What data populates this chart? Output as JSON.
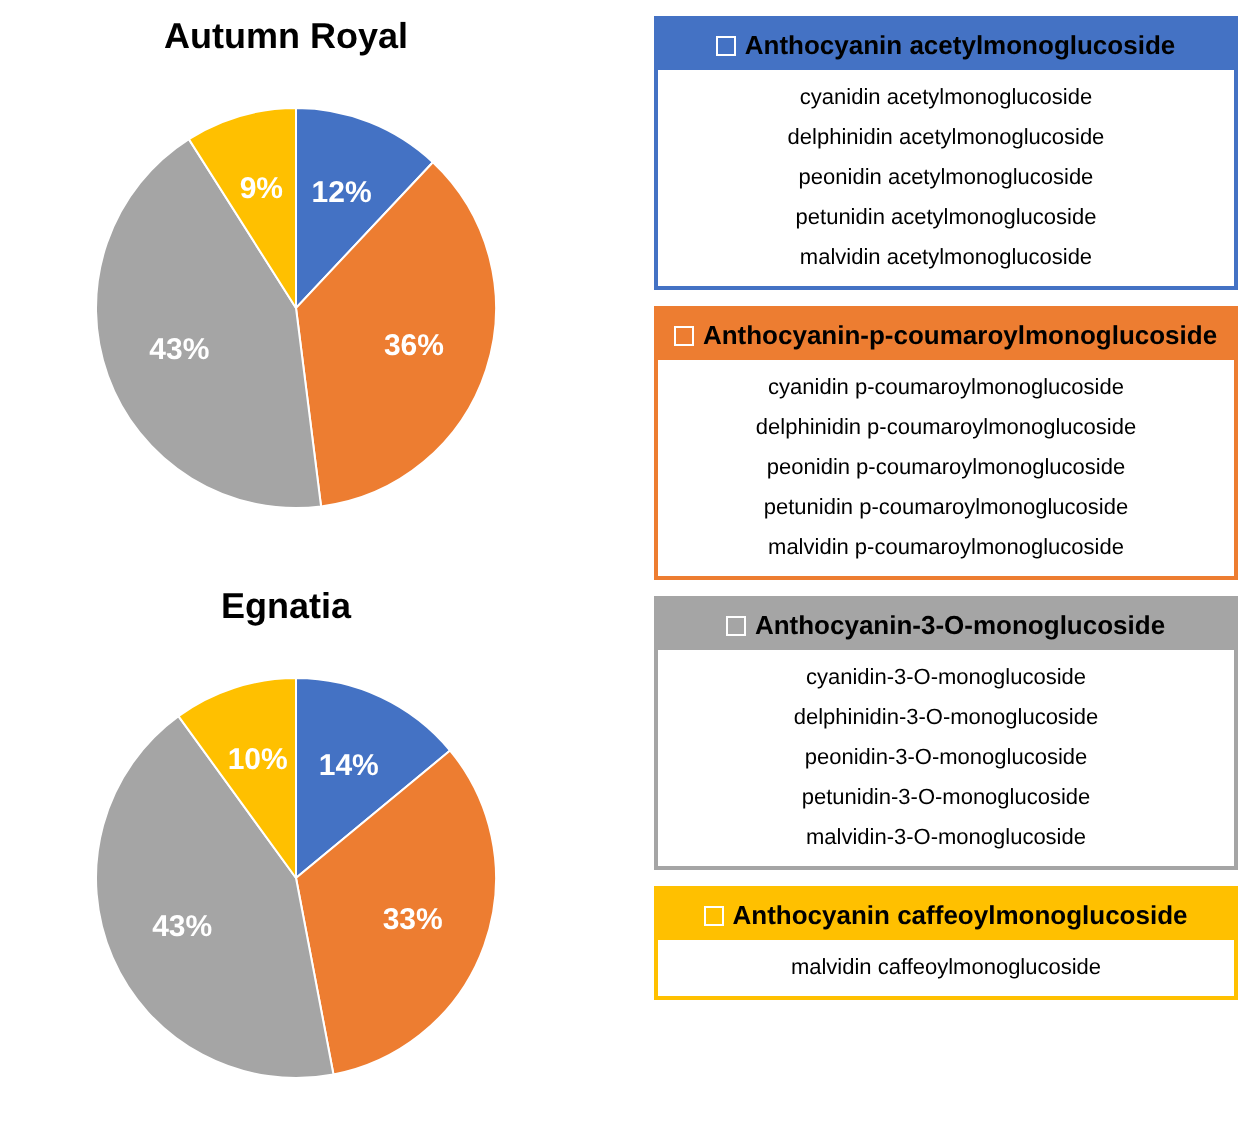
{
  "chart_data": [
    {
      "type": "pie",
      "title": "Autumn Royal",
      "categories": [
        "Anthocyanin acetylmonoglucoside",
        "Anthocyanin-p-coumaroylmonoglucoside",
        "Anthocyanin-3-O-monoglucoside",
        "Anthocyanin caffeoylmonoglucoside"
      ],
      "values": [
        12,
        36,
        43,
        9
      ],
      "colors": [
        "#4472c4",
        "#ed7d31",
        "#a5a5a5",
        "#ffc000"
      ],
      "value_labels": [
        "12%",
        "36%",
        "43%",
        "9%"
      ],
      "legend": "right",
      "annotations": [
        {
          "text": "cyanidin acetylmonoglucoside",
          "x": "Anthocyanin acetylmonoglucoside"
        },
        {
          "text": "delphinidin acetylmonoglucoside",
          "x": "Anthocyanin acetylmonoglucoside"
        },
        {
          "text": "peonidin acetylmonoglucoside",
          "x": "Anthocyanin acetylmonoglucoside"
        },
        {
          "text": "petunidin acetylmonoglucoside",
          "x": "Anthocyanin acetylmonoglucoside"
        },
        {
          "text": "malvidin acetylmonoglucoside",
          "x": "Anthocyanin acetylmonoglucoside"
        },
        {
          "text": "cyanidin p-coumaroylmonoglucoside",
          "x": "Anthocyanin-p-coumaroylmonoglucoside"
        },
        {
          "text": "delphinidin p-coumaroylmonoglucoside",
          "x": "Anthocyanin-p-coumaroylmonoglucoside"
        },
        {
          "text": "peonidin p-coumaroylmonoglucoside",
          "x": "Anthocyanin-p-coumaroylmonoglucoside"
        },
        {
          "text": "petunidin p-coumaroylmonoglucoside",
          "x": "Anthocyanin-p-coumaroylmonoglucoside"
        },
        {
          "text": "malvidin p-coumaroylmonoglucoside",
          "x": "Anthocyanin-p-coumaroylmonoglucoside"
        },
        {
          "text": "cyanidin-3-O-monoglucoside",
          "x": "Anthocyanin-3-O-monoglucoside"
        },
        {
          "text": "delphinidin-3-O-monoglucoside",
          "x": "Anthocyanin-3-O-monoglucoside"
        },
        {
          "text": "peonidin-3-O-monoglucoside",
          "x": "Anthocyanin-3-O-monoglucoside"
        },
        {
          "text": "petunidin-3-O-monoglucoside",
          "x": "Anthocyanin-3-O-monoglucoside"
        },
        {
          "text": "malvidin-3-O-monoglucoside",
          "x": "Anthocyanin-3-O-monoglucoside"
        },
        {
          "text": "malvidin caffeoylmonoglucoside",
          "x": "Anthocyanin caffeoylmonoglucoside"
        }
      ]
    },
    {
      "type": "pie",
      "title": "Egnatia",
      "categories": [
        null,
        null,
        null,
        null
      ],
      "values": [
        14,
        33,
        43,
        10
      ],
      "colors": [
        "#4472c4",
        "#ed7d31",
        "#a5a5a5",
        "#ffc000"
      ],
      "value_labels": [
        "14%",
        "33%",
        "43%",
        "10%"
      ]
    }
  ]
}
